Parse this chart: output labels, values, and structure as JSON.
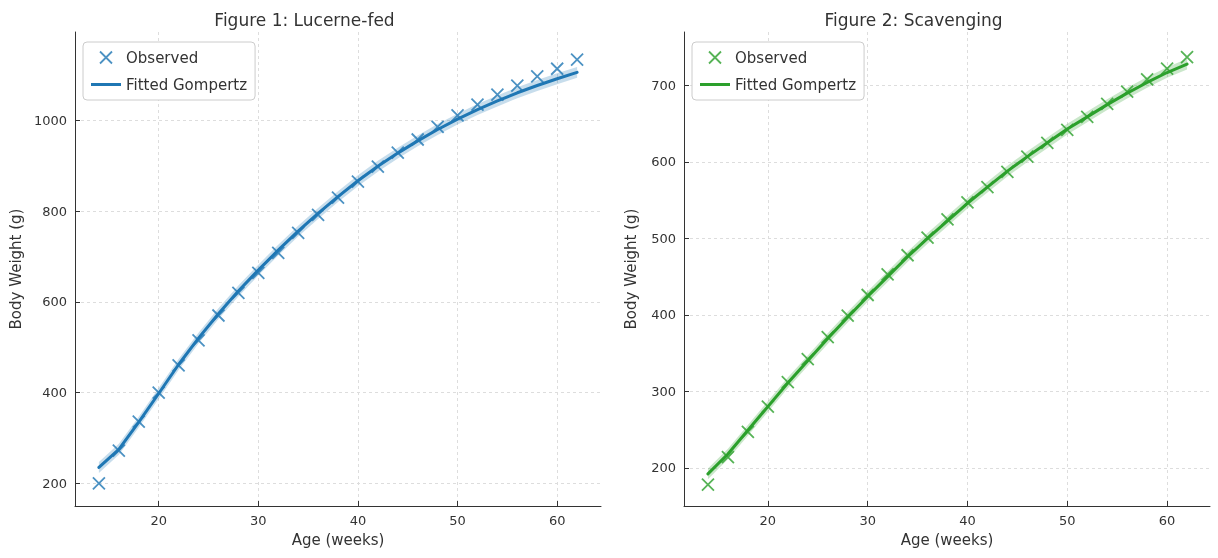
{
  "chart_data": [
    {
      "type": "line",
      "title": "Figure 1: Lucerne-fed",
      "xlabel": "Age (weeks)",
      "ylabel": "Body Weight (g)",
      "x": [
        14,
        16,
        18,
        20,
        22,
        24,
        26,
        28,
        30,
        32,
        34,
        36,
        38,
        40,
        42,
        44,
        46,
        48,
        50,
        52,
        54,
        56,
        58,
        60,
        62
      ],
      "xlim": [
        11.6,
        64.4
      ],
      "ylim": [
        150,
        1195
      ],
      "xticks": [
        20,
        30,
        40,
        50,
        60
      ],
      "yticks": [
        200,
        400,
        600,
        800,
        1000
      ],
      "grid": true,
      "legend": "top left",
      "series": [
        {
          "name": "Observed",
          "type": "scatter",
          "marker": "cross",
          "color": "#1f77b4",
          "values": [
            200,
            272,
            336,
            400,
            460,
            515,
            570,
            620,
            664,
            708,
            752,
            792,
            830,
            865,
            898,
            929,
            958,
            986,
            1011,
            1035,
            1057,
            1077,
            1097,
            1114,
            1134
          ]
        },
        {
          "name": "Fitted Gompertz",
          "marker": "none",
          "line_style": "solid",
          "color": "#1f77b4",
          "values": [
            235,
            275,
            335,
            398,
            462,
            520,
            574,
            624,
            670,
            714,
            756,
            795,
            832,
            867,
            899,
            928,
            955,
            980,
            1003,
            1024,
            1043,
            1061,
            1077,
            1092,
            1106
          ],
          "lower": [
            223,
            263,
            323,
            386,
            450,
            508,
            562,
            612,
            658,
            702,
            744,
            783,
            820,
            855,
            887,
            916,
            943,
            968,
            991,
            1012,
            1031,
            1049,
            1065,
            1080,
            1094
          ],
          "upper": [
            247,
            287,
            347,
            410,
            474,
            532,
            586,
            636,
            682,
            726,
            768,
            807,
            844,
            879,
            911,
            940,
            967,
            992,
            1015,
            1036,
            1055,
            1073,
            1089,
            1104,
            1118
          ]
        }
      ]
    },
    {
      "type": "line",
      "title": "Figure 2: Scavenging",
      "xlabel": "Age (weeks)",
      "ylabel": "Body Weight (g)",
      "x": [
        14,
        16,
        18,
        20,
        22,
        24,
        26,
        28,
        30,
        32,
        34,
        36,
        38,
        40,
        42,
        44,
        46,
        48,
        50,
        52,
        54,
        56,
        58,
        60,
        62
      ],
      "xlim": [
        11.6,
        64.3
      ],
      "ylim": [
        150,
        770
      ],
      "xticks": [
        20,
        30,
        40,
        50,
        60
      ],
      "yticks": [
        200,
        300,
        400,
        500,
        600,
        700
      ],
      "grid": true,
      "legend": "top left",
      "series": [
        {
          "name": "Observed",
          "type": "scatter",
          "marker": "cross",
          "color": "#2ca02c",
          "values": [
            178,
            214,
            247,
            280,
            312,
            342,
            371,
            399,
            426,
            453,
            478,
            501,
            525,
            547,
            567,
            587,
            607,
            625,
            642,
            659,
            676,
            692,
            708,
            722,
            737
          ]
        },
        {
          "name": "Fitted Gompertz",
          "marker": "none",
          "line_style": "solid",
          "color": "#2ca02c",
          "values": [
            192,
            218,
            249,
            280,
            311,
            340,
            369,
            397,
            424,
            450,
            476,
            500,
            523,
            546,
            567,
            588,
            607,
            625,
            643,
            659,
            675,
            690,
            704,
            717,
            728
          ],
          "lower": [
            185,
            211,
            242,
            273,
            304,
            333,
            362,
            390,
            417,
            443,
            469,
            493,
            516,
            539,
            560,
            581,
            600,
            618,
            636,
            652,
            668,
            683,
            697,
            710,
            721
          ],
          "upper": [
            199,
            225,
            256,
            287,
            318,
            347,
            376,
            404,
            431,
            457,
            483,
            507,
            530,
            553,
            574,
            595,
            614,
            632,
            650,
            666,
            682,
            697,
            711,
            724,
            735
          ]
        }
      ]
    }
  ]
}
